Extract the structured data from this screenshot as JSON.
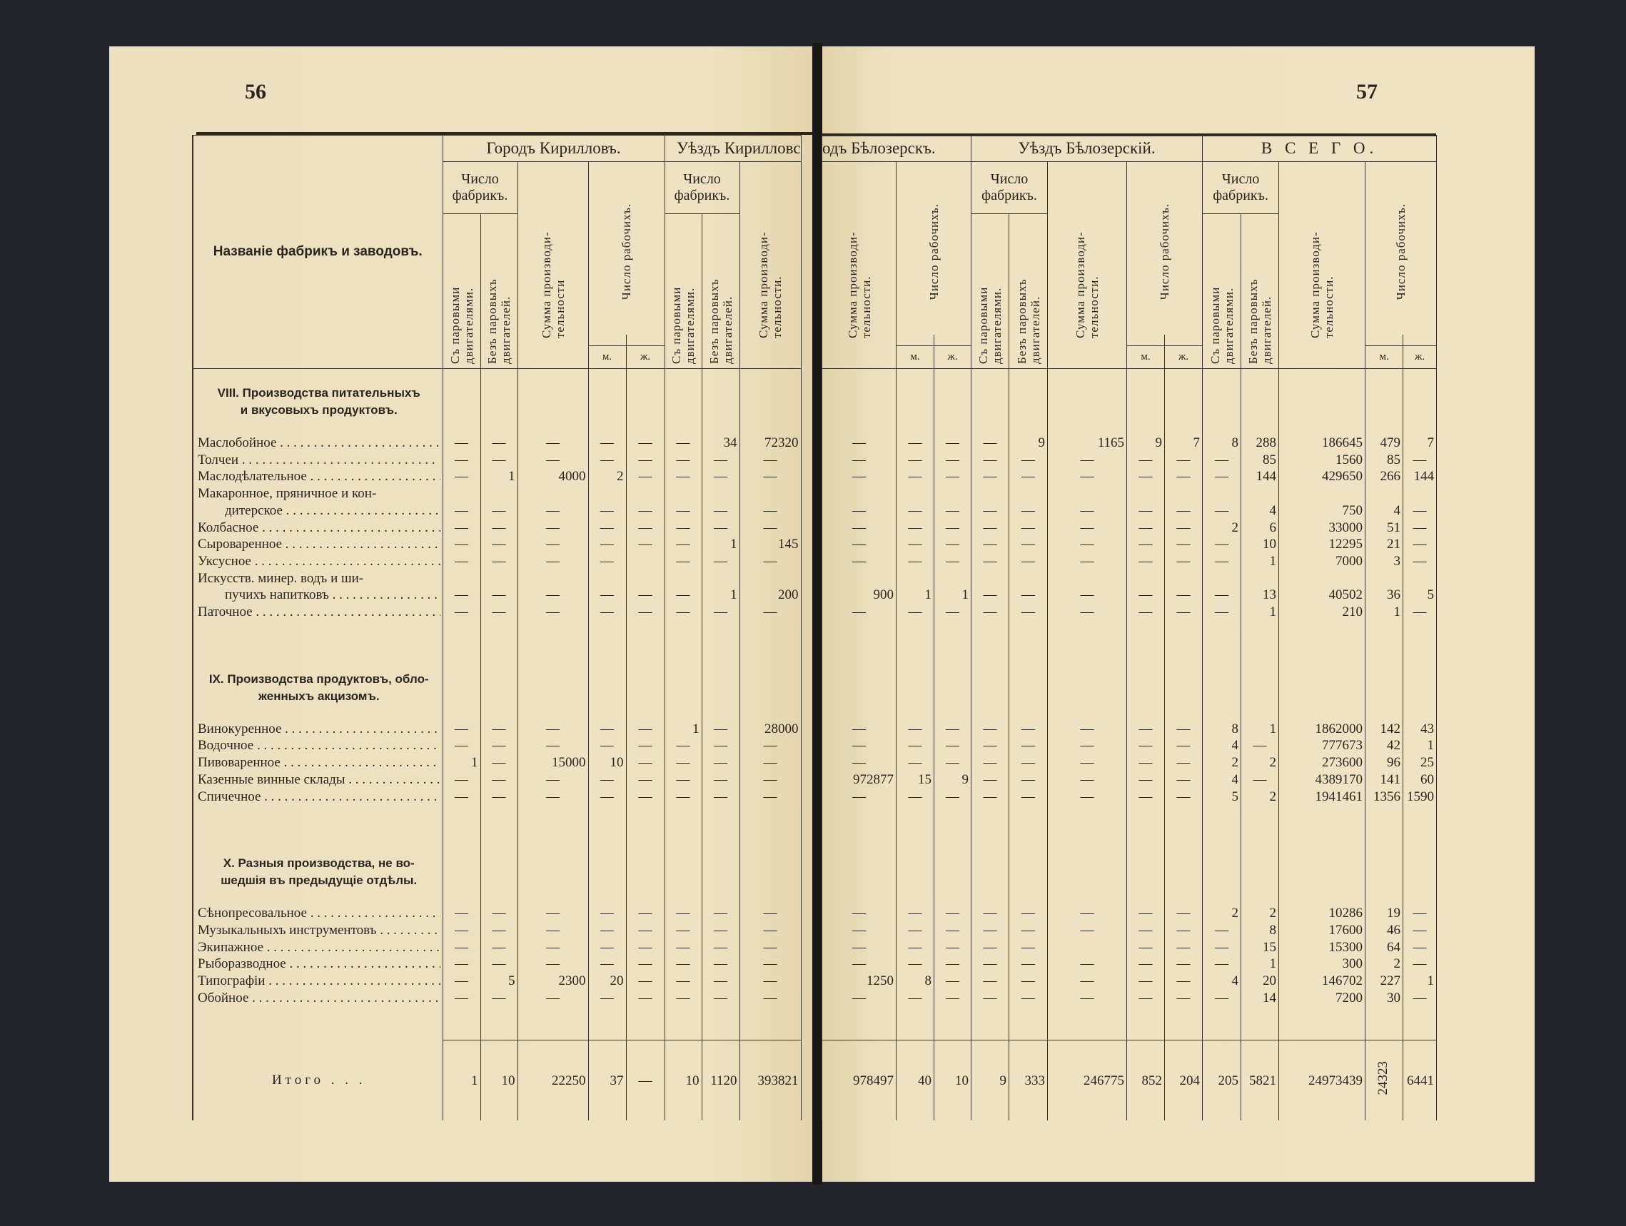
{
  "pages": {
    "left_number": "56",
    "right_number": "57"
  },
  "left_header": {
    "label": "Названіе фабрикъ и заводовъ.",
    "city_group": "Городъ Кирилловъ.",
    "uezd_group": "Уѣздъ Кирилловс",
    "num_factories": "Число фабрикъ.",
    "steam": "Съ паровыми двигателями.",
    "no_steam": "Безъ паровыхъ двигателей.",
    "sum": "Сумма производи-тельности",
    "sum2": "Сумма производи-тельности.",
    "workers": "Число рабочихъ.",
    "m": "м.",
    "zh": "ж."
  },
  "right_header": {
    "city_group": "одъ Бѣлозерскъ.",
    "uezd_group": "Уѣздъ Бѣлозерскій.",
    "total_group": "В С Е Г О.",
    "num_factories": "Число фабрикъ.",
    "steam": "Съ паровыми двигателями.",
    "no_steam": "Безъ паровыхъ двигателей.",
    "sum": "Сумма производи-тельности.",
    "workers": "Число рабочихъ.",
    "m": "м.",
    "zh": "ж."
  },
  "sections": [
    {
      "title": [
        "VIII. Производства питательныхъ",
        "и вкусовыхъ продуктовъ."
      ],
      "items": [
        {
          "name": [
            "Маслобойное"
          ],
          "left": [
            "—",
            "—",
            "—",
            "—",
            "—",
            "—",
            "34",
            "72320"
          ],
          "right": [
            "—",
            "—",
            "—",
            "—",
            "9",
            "1165",
            "9",
            "7",
            "8",
            "288",
            "186645",
            "479",
            "7"
          ]
        },
        {
          "name": [
            "Толчеи"
          ],
          "left": [
            "—",
            "—",
            "—",
            "—",
            "—",
            "—",
            "—",
            "—"
          ],
          "right": [
            "—",
            "—",
            "—",
            "—",
            "—",
            "—",
            "—",
            "—",
            "—",
            "85",
            "1560",
            "85",
            "—"
          ]
        },
        {
          "name": [
            "Маслодѣлательное"
          ],
          "left": [
            "—",
            "1",
            "4000",
            "2",
            "—",
            "—",
            "—",
            "—"
          ],
          "right": [
            "—",
            "—",
            "—",
            "—",
            "—",
            "—",
            "—",
            "—",
            "—",
            "144",
            "429650",
            "266",
            "144"
          ]
        },
        {
          "name": [
            "Макаронное, пряничное и кон-",
            "дитерское"
          ],
          "left": [
            "—",
            "—",
            "—",
            "—",
            "—",
            "—",
            "—",
            "—"
          ],
          "right": [
            "—",
            "—",
            "—",
            "—",
            "—",
            "—",
            "—",
            "—",
            "—",
            "4",
            "750",
            "4",
            "—"
          ]
        },
        {
          "name": [
            "Колбасное"
          ],
          "left": [
            "—",
            "—",
            "—",
            "—",
            "—",
            "—",
            "—",
            "—"
          ],
          "right": [
            "—",
            "—",
            "—",
            "—",
            "—",
            "—",
            "—",
            "—",
            "2",
            "6",
            "33000",
            "51",
            "—"
          ]
        },
        {
          "name": [
            "Сыроваренное"
          ],
          "left": [
            "—",
            "—",
            "—",
            "—",
            "—",
            "—",
            "1",
            "145"
          ],
          "right": [
            "—",
            "—",
            "—",
            "—",
            "—",
            "—",
            "—",
            "—",
            "—",
            "10",
            "12295",
            "21",
            "—"
          ]
        },
        {
          "name": [
            "Уксусное"
          ],
          "left": [
            "—",
            "—",
            "—",
            "—",
            "",
            "—",
            "—",
            "—"
          ],
          "right": [
            "—",
            "—",
            "—",
            "—",
            "—",
            "—",
            "—",
            "—",
            "—",
            "1",
            "7000",
            "3",
            "—"
          ]
        },
        {
          "name": [
            "Искусств. минер. водъ и ши-",
            "пучихъ напитковъ"
          ],
          "left": [
            "—",
            "—",
            "—",
            "—",
            "—",
            "—",
            "1",
            "200"
          ],
          "right": [
            "900",
            "1",
            "1",
            "—",
            "—",
            "—",
            "—",
            "—",
            "—",
            "13",
            "40502",
            "36",
            "5"
          ]
        },
        {
          "name": [
            "Паточное"
          ],
          "left": [
            "—",
            "—",
            "—",
            "—",
            "—",
            "—",
            "—",
            "—"
          ],
          "right": [
            "—",
            "—",
            "—",
            "—",
            "—",
            "—",
            "—",
            "—",
            "—",
            "1",
            "210",
            "1",
            "—"
          ]
        }
      ]
    },
    {
      "title": [
        "IX. Производства продуктовъ, обло-",
        "женныхъ акцизомъ."
      ],
      "items": [
        {
          "name": [
            "Винокуренное"
          ],
          "left": [
            "—",
            "—",
            "—",
            "—",
            "—",
            "1",
            "—",
            "28000"
          ],
          "right": [
            "—",
            "—",
            "—",
            "—",
            "—",
            "—",
            "—",
            "—",
            "8",
            "1",
            "1862000",
            "142",
            "43"
          ]
        },
        {
          "name": [
            "Водочное"
          ],
          "left": [
            "—",
            "—",
            "—",
            "—",
            "—",
            "—",
            "—",
            "—"
          ],
          "right": [
            "—",
            "—",
            "—",
            "—",
            "—",
            "—",
            "—",
            "—",
            "4",
            "—",
            "777673",
            "42",
            "1"
          ]
        },
        {
          "name": [
            "Пивоваренное"
          ],
          "left": [
            "1",
            "—",
            "15000",
            "10",
            "—",
            "—",
            "—",
            "—"
          ],
          "right": [
            "—",
            "—",
            "—",
            "—",
            "—",
            "—",
            "—",
            "—",
            "2",
            "2",
            "273600",
            "96",
            "25"
          ]
        },
        {
          "name": [
            "Казенные винные склады"
          ],
          "left": [
            "—",
            "—",
            "—",
            "—",
            "—",
            "—",
            "—",
            "—"
          ],
          "right": [
            "972877",
            "15",
            "9",
            "—",
            "—",
            "—",
            "—",
            "—",
            "4",
            "—",
            "4389170",
            "141",
            "60"
          ]
        },
        {
          "name": [
            "Спичечное"
          ],
          "left": [
            "—",
            "—",
            "—",
            "—",
            "—",
            "—",
            "—",
            "—"
          ],
          "right": [
            "—",
            "—",
            "—",
            "—",
            "—",
            "—",
            "—",
            "—",
            "5",
            "2",
            "1941461",
            "1356",
            "1590"
          ]
        }
      ]
    },
    {
      "title": [
        "X. Разныя производства, не во-",
        "шедшія въ предыдущіе отдѣлы."
      ],
      "items": [
        {
          "name": [
            "Сѣнопресовальное"
          ],
          "left": [
            "—",
            "—",
            "—",
            "—",
            "—",
            "—",
            "—",
            "—"
          ],
          "right": [
            "—",
            "—",
            "—",
            "—",
            "—",
            "—",
            "—",
            "—",
            "2",
            "2",
            "10286",
            "19",
            "—"
          ]
        },
        {
          "name": [
            "Музыкальныхъ инструментовъ"
          ],
          "left": [
            "—",
            "—",
            "—",
            "—",
            "—",
            "—",
            "—",
            "—"
          ],
          "right": [
            "—",
            "—",
            "—",
            "—",
            "—",
            "—",
            "—",
            "—",
            "—",
            "8",
            "17600",
            "46",
            "—"
          ]
        },
        {
          "name": [
            "Экипажное"
          ],
          "left": [
            "—",
            "—",
            "—",
            "—",
            "—",
            "—",
            "—",
            "—"
          ],
          "right": [
            "—",
            "—",
            "—",
            "—",
            "—",
            "",
            "—",
            "—",
            "—",
            "15",
            "15300",
            "64",
            "—"
          ]
        },
        {
          "name": [
            "Рыборазводное"
          ],
          "left": [
            "—",
            "—",
            "—",
            "—",
            "—",
            "—",
            "—",
            "—"
          ],
          "right": [
            "—",
            "—",
            "—",
            "—",
            "—",
            "—",
            "—",
            "—",
            "—",
            "1",
            "300",
            "2",
            "—"
          ]
        },
        {
          "name": [
            "Типографіи"
          ],
          "left": [
            "—",
            "5",
            "2300",
            "20",
            "—",
            "—",
            "—",
            "—"
          ],
          "right": [
            "1250",
            "8",
            "—",
            "—",
            "—",
            "—",
            "—",
            "—",
            "4",
            "20",
            "146702",
            "227",
            "1"
          ]
        },
        {
          "name": [
            "Обойное"
          ],
          "left": [
            "—",
            "—",
            "—",
            "—",
            "—",
            "—",
            "—",
            "—"
          ],
          "right": [
            "—",
            "—",
            "—",
            "—",
            "—",
            "—",
            "—",
            "—",
            "—",
            "14",
            "7200",
            "30",
            "—"
          ]
        }
      ]
    }
  ],
  "totals": {
    "label": "Итого . . .",
    "left": [
      "1",
      "10",
      "22250",
      "37",
      "—",
      "10",
      "1120",
      "393821"
    ],
    "right": [
      "978497",
      "40",
      "10",
      "9",
      "333",
      "246775",
      "852",
      "204",
      "205",
      "5821",
      "24973439",
      "24323",
      "6441"
    ]
  }
}
